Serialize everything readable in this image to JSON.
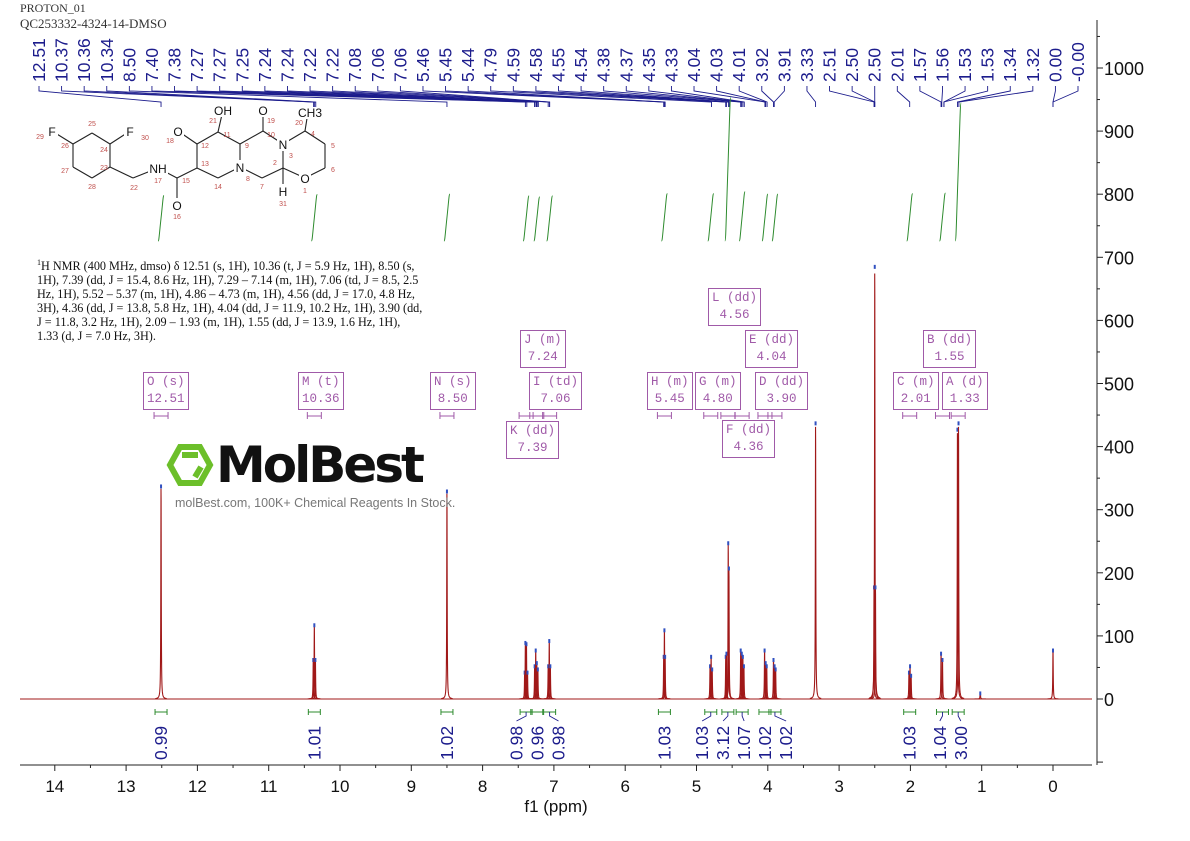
{
  "header": {
    "line1": "PROTON_01",
    "line2": "QC253332-4324-14-DMSO"
  },
  "nmr_text_superscript": "1",
  "nmr_text": "H NMR (400 MHz, dmso) δ 12.51 (s, 1H), 10.36 (t, J = 5.9 Hz, 1H), 8.50 (s, 1H), 7.39 (dd, J = 15.4, 8.6 Hz, 1H), 7.29 – 7.14 (m, 1H), 7.06 (td, J = 8.5, 2.5 Hz, 1H), 5.52 – 5.37 (m, 1H), 4.86 – 4.73 (m, 1H), 4.56 (dd, J = 17.0, 4.8 Hz, 3H), 4.36 (dd, J = 13.8, 5.8 Hz, 1H), 4.04 (dd, J = 11.9, 10.2 Hz, 1H), 3.90 (dd, J = 11.8, 3.2 Hz, 1H), 2.09 – 1.93 (m, 1H), 1.55 (dd, J = 13.9, 1.6 Hz, 1H), 1.33 (d, J = 7.0 Hz, 3H).",
  "watermark": {
    "logo": "MolBest",
    "subtitle": "molBest.com, 100K+ Chemical Reagents In Stock.",
    "logo_color": "#6cbf2a"
  },
  "structure": {
    "atom_labels": [
      "F",
      "F",
      "NH",
      "O",
      "O",
      "OH",
      "O",
      "N",
      "N",
      "CH3",
      "O",
      "H"
    ],
    "atom_numbers": [
      "29",
      "26",
      "25",
      "24",
      "30",
      "27",
      "28",
      "23",
      "22",
      "17",
      "15",
      "16",
      "13",
      "12",
      "18",
      "11",
      "21",
      "9",
      "8",
      "14",
      "10",
      "19",
      "3",
      "2",
      "7",
      "4",
      "20",
      "5",
      "6",
      "1",
      "31"
    ]
  },
  "colors": {
    "spectrum": "#a01818",
    "peak_labels": "#1c1c8c",
    "integrals": "#2e8b2e",
    "multiplets": "#a05aa8",
    "axis": "#222222"
  },
  "chart_data": {
    "type": "line",
    "xlabel": "f1 (ppm)",
    "ylabel": "",
    "xlim": [
      14.5,
      -0.55
    ],
    "ylim": [
      -105,
      1075
    ],
    "x_reversed": true,
    "x_ticks": [
      "14",
      "13",
      "12",
      "11",
      "10",
      "9",
      "8",
      "7",
      "6",
      "5",
      "4",
      "3",
      "2",
      "1",
      "0"
    ],
    "y_ticks": [
      "0",
      "100",
      "200",
      "300",
      "400",
      "500",
      "600",
      "700",
      "800",
      "900",
      "1000"
    ],
    "y_axis_side": "right",
    "grid": false,
    "peaks": [
      [
        12.51,
        340
      ],
      [
        10.375,
        65
      ],
      [
        10.36,
        120
      ],
      [
        10.345,
        65
      ],
      [
        8.5,
        332
      ],
      [
        7.41,
        45
      ],
      [
        7.4,
        92
      ],
      [
        7.385,
        90
      ],
      [
        7.37,
        45
      ],
      [
        7.27,
        55
      ],
      [
        7.255,
        80
      ],
      [
        7.24,
        60
      ],
      [
        7.225,
        50
      ],
      [
        7.08,
        55
      ],
      [
        7.065,
        95
      ],
      [
        7.05,
        55
      ],
      [
        5.46,
        70
      ],
      [
        5.45,
        112
      ],
      [
        5.44,
        70
      ],
      [
        4.81,
        55
      ],
      [
        4.795,
        70
      ],
      [
        4.78,
        50
      ],
      [
        4.59,
        70
      ],
      [
        4.58,
        75
      ],
      [
        4.555,
        250
      ],
      [
        4.545,
        210
      ],
      [
        4.38,
        80
      ],
      [
        4.365,
        75
      ],
      [
        4.35,
        70
      ],
      [
        4.335,
        55
      ],
      [
        4.045,
        80
      ],
      [
        4.03,
        60
      ],
      [
        4.015,
        55
      ],
      [
        3.92,
        65
      ],
      [
        3.905,
        55
      ],
      [
        3.89,
        50
      ],
      [
        3.33,
        440
      ],
      [
        2.51,
        180
      ],
      [
        2.5,
        688
      ],
      [
        2.49,
        180
      ],
      [
        2.02,
        45
      ],
      [
        2.005,
        55
      ],
      [
        1.99,
        40
      ],
      [
        1.57,
        75
      ],
      [
        1.55,
        65
      ],
      [
        1.34,
        430
      ],
      [
        1.325,
        440
      ],
      [
        1.02,
        12
      ],
      [
        0.0,
        80
      ]
    ],
    "peak_labels": [
      "12.51",
      "10.37",
      "10.36",
      "10.34",
      "8.50",
      "7.40",
      "7.38",
      "7.27",
      "7.27",
      "7.25",
      "7.24",
      "7.24",
      "7.22",
      "7.22",
      "7.08",
      "7.06",
      "7.06",
      "5.46",
      "5.45",
      "5.44",
      "4.79",
      "4.59",
      "4.58",
      "4.55",
      "4.54",
      "4.38",
      "4.37",
      "4.35",
      "4.33",
      "4.04",
      "4.03",
      "4.01",
      "3.92",
      "3.91",
      "3.33",
      "2.51",
      "2.50",
      "2.50",
      "2.01",
      "1.57",
      "1.56",
      "1.53",
      "1.53",
      "1.34",
      "1.32",
      "0.00",
      "-0.00"
    ],
    "integrals": [
      {
        "ppm": 12.51,
        "value": "0.99"
      },
      {
        "ppm": 10.36,
        "value": "1.01"
      },
      {
        "ppm": 8.5,
        "value": "1.02"
      },
      {
        "ppm": 7.39,
        "value": "0.98"
      },
      {
        "ppm": 7.24,
        "value": "0.96"
      },
      {
        "ppm": 7.06,
        "value": "0.98"
      },
      {
        "ppm": 5.45,
        "value": "1.03"
      },
      {
        "ppm": 4.8,
        "value": "1.03"
      },
      {
        "ppm": 4.56,
        "value": "3.12"
      },
      {
        "ppm": 4.36,
        "value": "1.07"
      },
      {
        "ppm": 4.04,
        "value": "1.02"
      },
      {
        "ppm": 3.9,
        "value": "1.02"
      },
      {
        "ppm": 2.01,
        "value": "1.03"
      },
      {
        "ppm": 1.55,
        "value": "1.04"
      },
      {
        "ppm": 1.33,
        "value": "3.00"
      }
    ],
    "multiplets": [
      {
        "label": "O (s)",
        "shift": "12.51",
        "ppm": 12.51
      },
      {
        "label": "M (t)",
        "shift": "10.36",
        "ppm": 10.36
      },
      {
        "label": "N (s)",
        "shift": "8.50",
        "ppm": 8.5
      },
      {
        "label": "J (m)",
        "shift": "7.24",
        "ppm": 7.24
      },
      {
        "label": "I (td)",
        "shift": "7.06",
        "ppm": 7.06
      },
      {
        "label": "K (dd)",
        "shift": "7.39",
        "ppm": 7.39
      },
      {
        "label": "H (m)",
        "shift": "5.45",
        "ppm": 5.45
      },
      {
        "label": "G (m)",
        "shift": "4.80",
        "ppm": 4.8
      },
      {
        "label": "L (dd)",
        "shift": "4.56",
        "ppm": 4.56
      },
      {
        "label": "E (dd)",
        "shift": "4.04",
        "ppm": 4.04
      },
      {
        "label": "D (dd)",
        "shift": "3.90",
        "ppm": 3.9
      },
      {
        "label": "F (dd)",
        "shift": "4.36",
        "ppm": 4.36
      },
      {
        "label": "C (m)",
        "shift": "2.01",
        "ppm": 2.01
      },
      {
        "label": "A (d)",
        "shift": "1.33",
        "ppm": 1.33
      },
      {
        "label": "B (dd)",
        "shift": "1.55",
        "ppm": 1.55
      }
    ]
  }
}
